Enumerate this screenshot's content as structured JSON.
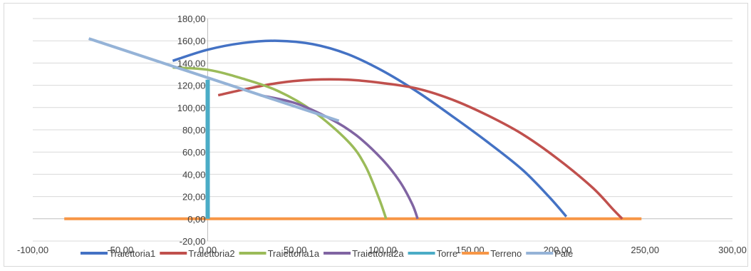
{
  "chart_data": {
    "type": "line",
    "xlim": [
      -100,
      300
    ],
    "ylim": [
      -20,
      180
    ],
    "x_ticks": [
      {
        "value": -100,
        "label": "-100,00"
      },
      {
        "value": -50,
        "label": "-50,00"
      },
      {
        "value": 0,
        "label": "0,00"
      },
      {
        "value": 50,
        "label": "50,00"
      },
      {
        "value": 100,
        "label": "100,00"
      },
      {
        "value": 150,
        "label": "150,00"
      },
      {
        "value": 200,
        "label": "200,00"
      },
      {
        "value": 250,
        "label": "250,00"
      },
      {
        "value": 300,
        "label": "300,00"
      }
    ],
    "y_ticks": [
      {
        "value": -20,
        "label": "-20,00"
      },
      {
        "value": 0,
        "label": "0,00"
      },
      {
        "value": 20,
        "label": "20,00"
      },
      {
        "value": 40,
        "label": "40,00"
      },
      {
        "value": 60,
        "label": "60,00"
      },
      {
        "value": 80,
        "label": "80,00"
      },
      {
        "value": 100,
        "label": "100,00"
      },
      {
        "value": 120,
        "label": "120,00"
      },
      {
        "value": 140,
        "label": "140,00"
      },
      {
        "value": 160,
        "label": "160,00"
      },
      {
        "value": 180,
        "label": "180,00"
      }
    ],
    "grid": "horizontal",
    "legend_position": "bottom",
    "series": [
      {
        "name": "Traiettoria1",
        "color": "#4472c4",
        "points": [
          [
            -20,
            142
          ],
          [
            0,
            152
          ],
          [
            20,
            158
          ],
          [
            40,
            160
          ],
          [
            60,
            157
          ],
          [
            80,
            148
          ],
          [
            100,
            133
          ],
          [
            120,
            114
          ],
          [
            140,
            92
          ],
          [
            160,
            69
          ],
          [
            180,
            44
          ],
          [
            195,
            20
          ],
          [
            205,
            2
          ]
        ]
      },
      {
        "name": "Traiettoria2",
        "color": "#c0504d",
        "points": [
          [
            6,
            111
          ],
          [
            20,
            116
          ],
          [
            40,
            122
          ],
          [
            60,
            125
          ],
          [
            80,
            125
          ],
          [
            100,
            122
          ],
          [
            120,
            117
          ],
          [
            140,
            107
          ],
          [
            160,
            93
          ],
          [
            180,
            76
          ],
          [
            200,
            54
          ],
          [
            220,
            28
          ],
          [
            232,
            8
          ],
          [
            237,
            0
          ]
        ]
      },
      {
        "name": "Traiettoria1a",
        "color": "#9bbb59",
        "points": [
          [
            -20,
            136
          ],
          [
            0,
            134
          ],
          [
            20,
            126
          ],
          [
            40,
            115
          ],
          [
            60,
            97
          ],
          [
            80,
            70
          ],
          [
            90,
            48
          ],
          [
            98,
            18
          ],
          [
            102,
            0
          ]
        ]
      },
      {
        "name": "Traiettoria2a",
        "color": "#8064a2",
        "points": [
          [
            30,
            111
          ],
          [
            50,
            104
          ],
          [
            70,
            90
          ],
          [
            85,
            75
          ],
          [
            100,
            53
          ],
          [
            110,
            33
          ],
          [
            117,
            13
          ],
          [
            120,
            0
          ]
        ]
      },
      {
        "name": "Torre",
        "color": "#4bacc6",
        "points": [
          [
            0,
            0
          ],
          [
            0,
            125
          ]
        ]
      },
      {
        "name": "Terreno",
        "color": "#f79646",
        "points": [
          [
            -82,
            0
          ],
          [
            248,
            0
          ]
        ]
      },
      {
        "name": "Pale",
        "color": "#95b3d7",
        "points": [
          [
            -68,
            162
          ],
          [
            75,
            88
          ]
        ]
      }
    ]
  }
}
